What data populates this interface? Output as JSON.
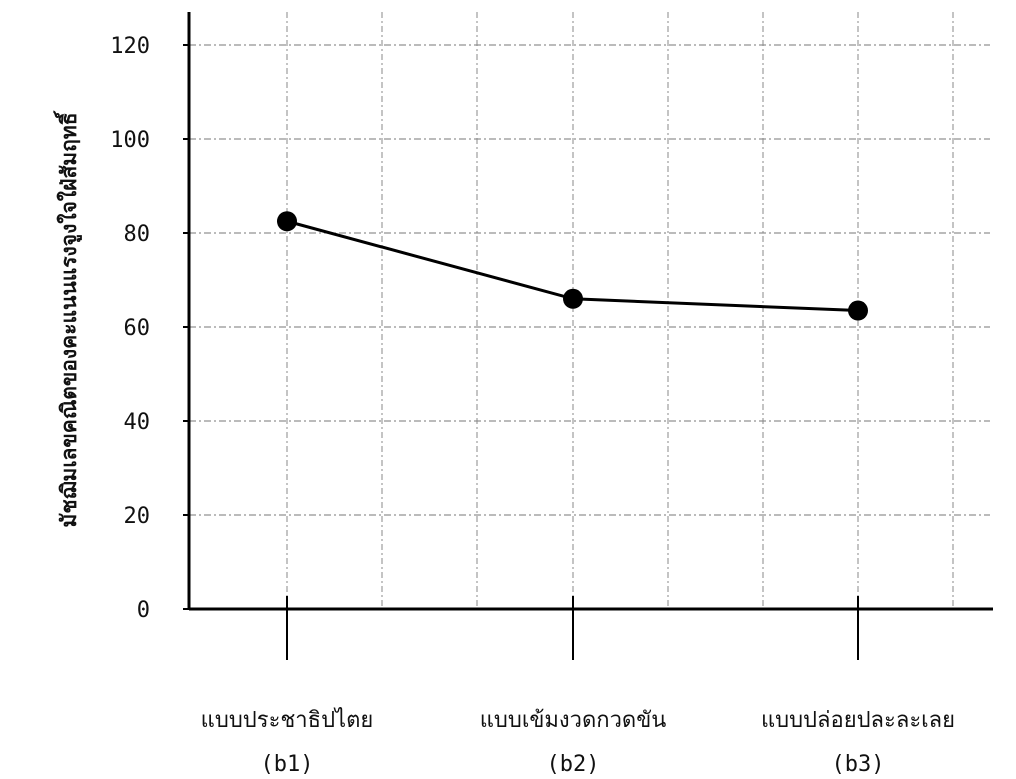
{
  "chart_data": {
    "type": "line",
    "ylabel": "มัชฌิมเลขคณิตของคะแนนแรงจูงใจใฝ่สัมฤทธิ์",
    "xlabel": "",
    "ylim": [
      0,
      120
    ],
    "yticks": [
      "0",
      "20",
      "40",
      "60",
      "80",
      "100",
      "120"
    ],
    "grid": true,
    "categories": [
      "แบบประชาธิปไตย",
      "แบบเข้มงวดกวดขัน",
      "แบบปล่อยปละละเลย"
    ],
    "subscripts": [
      "(b1)",
      "(b2)",
      "(b3)"
    ],
    "series": [
      {
        "values": [
          82.5,
          66,
          63.5
        ]
      }
    ]
  }
}
